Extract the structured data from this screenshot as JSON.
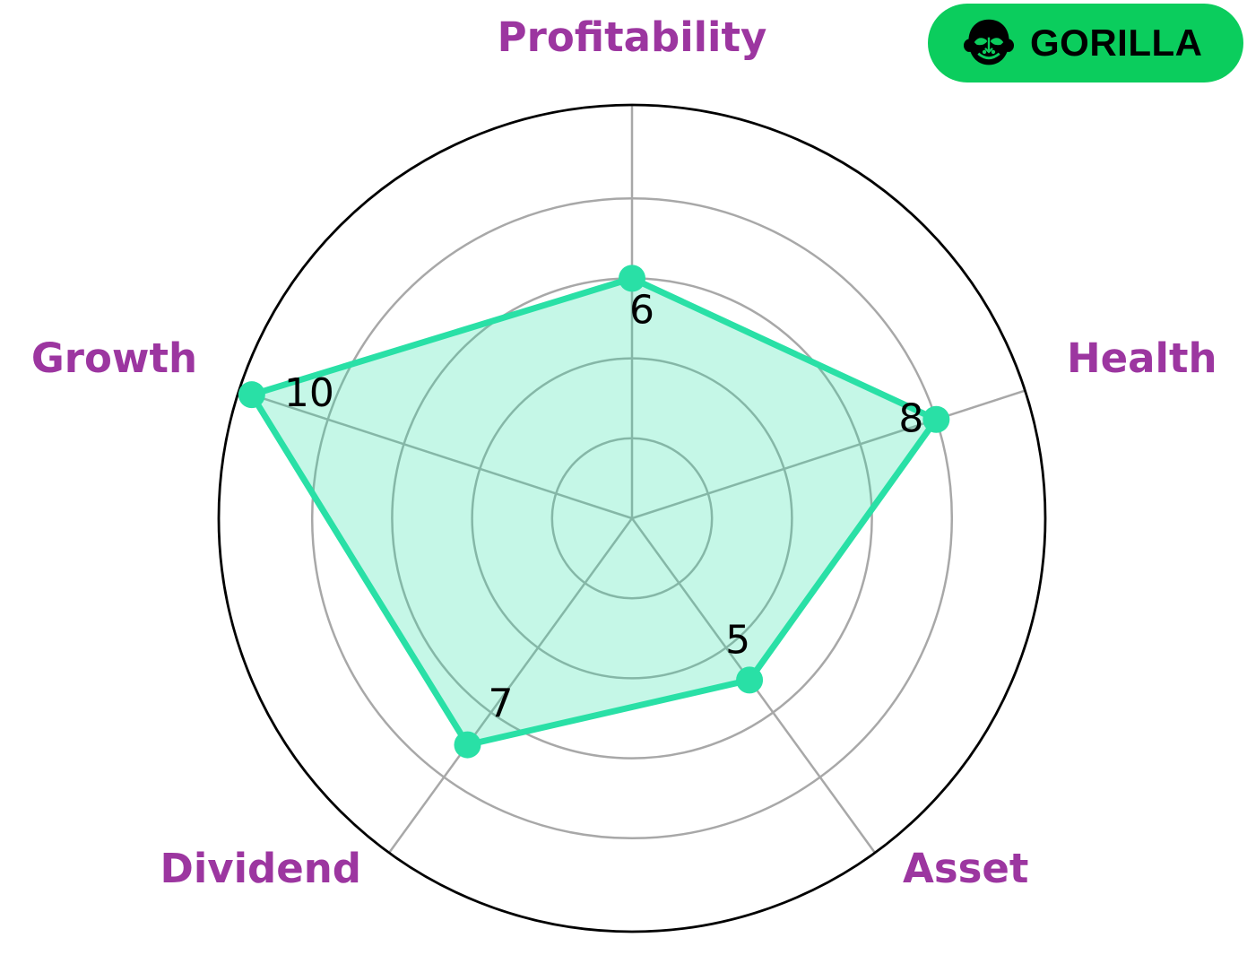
{
  "chart_data": {
    "type": "radar",
    "categories": [
      "Profitability",
      "Health",
      "Asset",
      "Dividend",
      "Growth"
    ],
    "values": [
      6,
      8,
      5,
      7,
      10
    ],
    "value_labels": [
      "6",
      "8",
      "5",
      "7",
      "10"
    ],
    "rgrid": [
      2,
      4,
      6,
      8
    ],
    "rmax": 10.33,
    "grid_on": true,
    "legend_position": "none",
    "title": "",
    "colors": {
      "series_line": "#29e0a6",
      "series_fill": "rgba(41,224,166,0.27)",
      "marker": "#29e0a6",
      "category_label": "#9c36a0",
      "value_label": "#000000",
      "grid_line": "#a8a8a8",
      "outer_ring": "#000000"
    }
  },
  "badge": {
    "label": "GORILLA",
    "icon": "gorilla-icon",
    "background_color": "#0bcd5d",
    "text_color": "#000000"
  }
}
